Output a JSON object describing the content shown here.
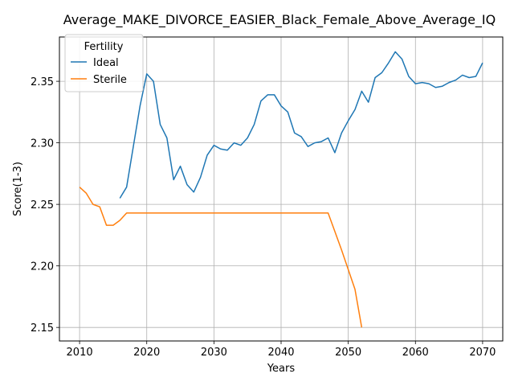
{
  "chart_data": {
    "type": "line",
    "title": "Average_MAKE_DIVORCE_EASIER_Black_Female_Above_Average_IQ",
    "xlabel": "Years",
    "ylabel": "Score(1-3)",
    "xlim": [
      2007,
      2073
    ],
    "ylim": [
      2.139,
      2.386
    ],
    "xticks": [
      2010,
      2020,
      2030,
      2040,
      2050,
      2060,
      2070
    ],
    "yticks": [
      2.15,
      2.2,
      2.25,
      2.3,
      2.35
    ],
    "ytick_labels": [
      "2.15",
      "2.20",
      "2.25",
      "2.30",
      "2.35"
    ],
    "grid": true,
    "legend": {
      "title": "Fertility",
      "placement": "top-left"
    },
    "series": [
      {
        "name": "Ideal",
        "color": "#1f77b4",
        "points": [
          [
            2016,
            2.255
          ],
          [
            2017,
            2.264
          ],
          [
            2018,
            2.297
          ],
          [
            2019,
            2.33
          ],
          [
            2020,
            2.356
          ],
          [
            2021,
            2.35
          ],
          [
            2022,
            2.315
          ],
          [
            2023,
            2.304
          ],
          [
            2024,
            2.27
          ],
          [
            2025,
            2.281
          ],
          [
            2026,
            2.266
          ],
          [
            2027,
            2.26
          ],
          [
            2028,
            2.272
          ],
          [
            2029,
            2.29
          ],
          [
            2030,
            2.298
          ],
          [
            2031,
            2.295
          ],
          [
            2032,
            2.294
          ],
          [
            2033,
            2.3
          ],
          [
            2034,
            2.298
          ],
          [
            2035,
            2.304
          ],
          [
            2036,
            2.315
          ],
          [
            2037,
            2.334
          ],
          [
            2038,
            2.339
          ],
          [
            2039,
            2.339
          ],
          [
            2040,
            2.33
          ],
          [
            2041,
            2.325
          ],
          [
            2042,
            2.308
          ],
          [
            2043,
            2.305
          ],
          [
            2044,
            2.297
          ],
          [
            2045,
            2.3
          ],
          [
            2046,
            2.301
          ],
          [
            2047,
            2.304
          ],
          [
            2048,
            2.292
          ],
          [
            2049,
            2.308
          ],
          [
            2050,
            2.318
          ],
          [
            2051,
            2.327
          ],
          [
            2052,
            2.342
          ],
          [
            2053,
            2.333
          ],
          [
            2054,
            2.353
          ],
          [
            2055,
            2.357
          ],
          [
            2056,
            2.365
          ],
          [
            2057,
            2.374
          ],
          [
            2058,
            2.368
          ],
          [
            2059,
            2.354
          ],
          [
            2060,
            2.348
          ],
          [
            2061,
            2.349
          ],
          [
            2062,
            2.348
          ],
          [
            2063,
            2.345
          ],
          [
            2064,
            2.346
          ],
          [
            2065,
            2.349
          ],
          [
            2066,
            2.351
          ],
          [
            2067,
            2.355
          ],
          [
            2068,
            2.353
          ],
          [
            2069,
            2.354
          ],
          [
            2070,
            2.365
          ]
        ]
      },
      {
        "name": "Sterile",
        "color": "#ff7f0e",
        "points": [
          [
            2010,
            2.264
          ],
          [
            2011,
            2.259
          ],
          [
            2012,
            2.25
          ],
          [
            2013,
            2.248
          ],
          [
            2014,
            2.233
          ],
          [
            2015,
            2.233
          ],
          [
            2016,
            2.237
          ],
          [
            2017,
            2.243
          ],
          [
            2018,
            2.243
          ],
          [
            2019,
            2.243
          ],
          [
            2020,
            2.243
          ],
          [
            2021,
            2.243
          ],
          [
            2022,
            2.243
          ],
          [
            2023,
            2.243
          ],
          [
            2024,
            2.243
          ],
          [
            2025,
            2.243
          ],
          [
            2026,
            2.243
          ],
          [
            2027,
            2.243
          ],
          [
            2028,
            2.243
          ],
          [
            2029,
            2.243
          ],
          [
            2030,
            2.243
          ],
          [
            2031,
            2.243
          ],
          [
            2032,
            2.243
          ],
          [
            2033,
            2.243
          ],
          [
            2034,
            2.243
          ],
          [
            2035,
            2.243
          ],
          [
            2036,
            2.243
          ],
          [
            2037,
            2.243
          ],
          [
            2038,
            2.243
          ],
          [
            2039,
            2.243
          ],
          [
            2040,
            2.243
          ],
          [
            2041,
            2.243
          ],
          [
            2042,
            2.243
          ],
          [
            2043,
            2.243
          ],
          [
            2044,
            2.243
          ],
          [
            2045,
            2.243
          ],
          [
            2046,
            2.243
          ],
          [
            2047,
            2.243
          ],
          [
            2048,
            2.228
          ],
          [
            2049,
            2.213
          ],
          [
            2050,
            2.197
          ],
          [
            2051,
            2.181
          ],
          [
            2052,
            2.15
          ]
        ]
      }
    ]
  }
}
